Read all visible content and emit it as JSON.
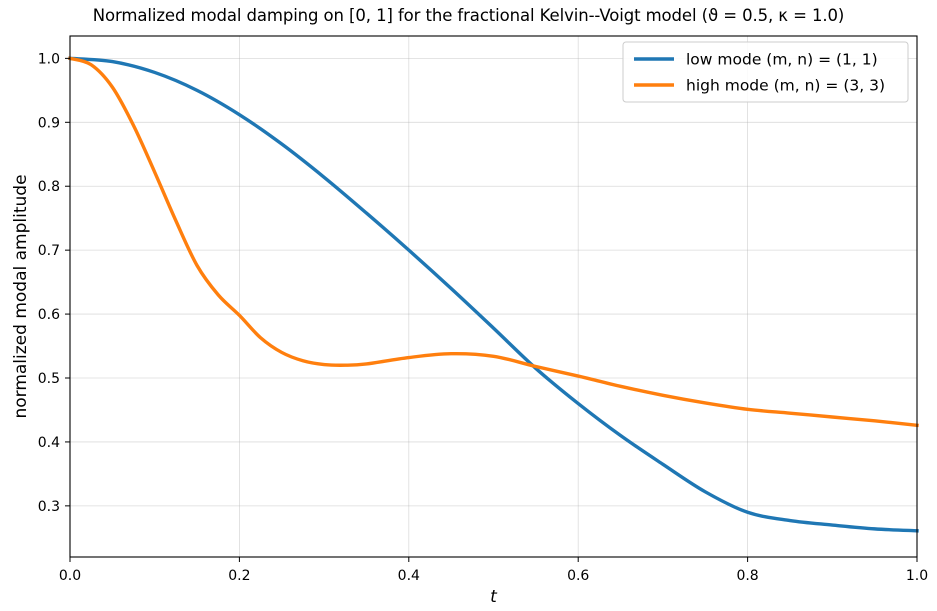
{
  "chart_data": {
    "type": "line",
    "title": "Normalized modal damping on [0, 1] for the fractional Kelvin--Voigt model (ϑ = 0.5,  κ = 1.0)",
    "xlabel": "t",
    "ylabel": "normalized modal amplitude",
    "xlim": [
      0.0,
      1.0
    ],
    "ylim": [
      0.22,
      1.035
    ],
    "xticks": [
      0.0,
      0.2,
      0.4,
      0.6,
      0.8,
      1.0
    ],
    "xtick_labels": [
      "0.0",
      "0.2",
      "0.4",
      "0.6",
      "0.8",
      "1.0"
    ],
    "yticks": [
      0.3,
      0.4,
      0.5,
      0.6,
      0.7,
      0.8,
      0.9,
      1.0
    ],
    "ytick_labels": [
      "0.3",
      "0.4",
      "0.5",
      "0.6",
      "0.7",
      "0.8",
      "0.9",
      "1.0"
    ],
    "grid": true,
    "legend_position": "top-right",
    "series": [
      {
        "name": "low mode (m, n) = (1, 1)",
        "color": "#1f77b4",
        "x": [
          0.0,
          0.05,
          0.1,
          0.15,
          0.2,
          0.25,
          0.3,
          0.35,
          0.4,
          0.45,
          0.5,
          0.55,
          0.6,
          0.65,
          0.7,
          0.75,
          0.8,
          0.85,
          0.9,
          0.95,
          1.0
        ],
        "y": [
          1.0,
          0.995,
          0.978,
          0.95,
          0.912,
          0.866,
          0.814,
          0.758,
          0.7,
          0.64,
          0.578,
          0.515,
          0.46,
          0.41,
          0.365,
          0.322,
          0.29,
          0.277,
          0.27,
          0.264,
          0.261
        ]
      },
      {
        "name": "high mode (m, n) = (3, 3)",
        "color": "#ff7f0e",
        "x": [
          0.0,
          0.025,
          0.05,
          0.075,
          0.1,
          0.125,
          0.15,
          0.175,
          0.2,
          0.225,
          0.25,
          0.275,
          0.3,
          0.325,
          0.35,
          0.4,
          0.45,
          0.5,
          0.55,
          0.6,
          0.65,
          0.7,
          0.75,
          0.8,
          0.85,
          0.9,
          0.95,
          1.0
        ],
        "y": [
          1.0,
          0.99,
          0.955,
          0.895,
          0.822,
          0.746,
          0.676,
          0.63,
          0.598,
          0.563,
          0.54,
          0.527,
          0.521,
          0.52,
          0.522,
          0.532,
          0.538,
          0.534,
          0.518,
          0.503,
          0.487,
          0.473,
          0.461,
          0.451,
          0.445,
          0.439,
          0.433,
          0.426
        ]
      }
    ]
  }
}
